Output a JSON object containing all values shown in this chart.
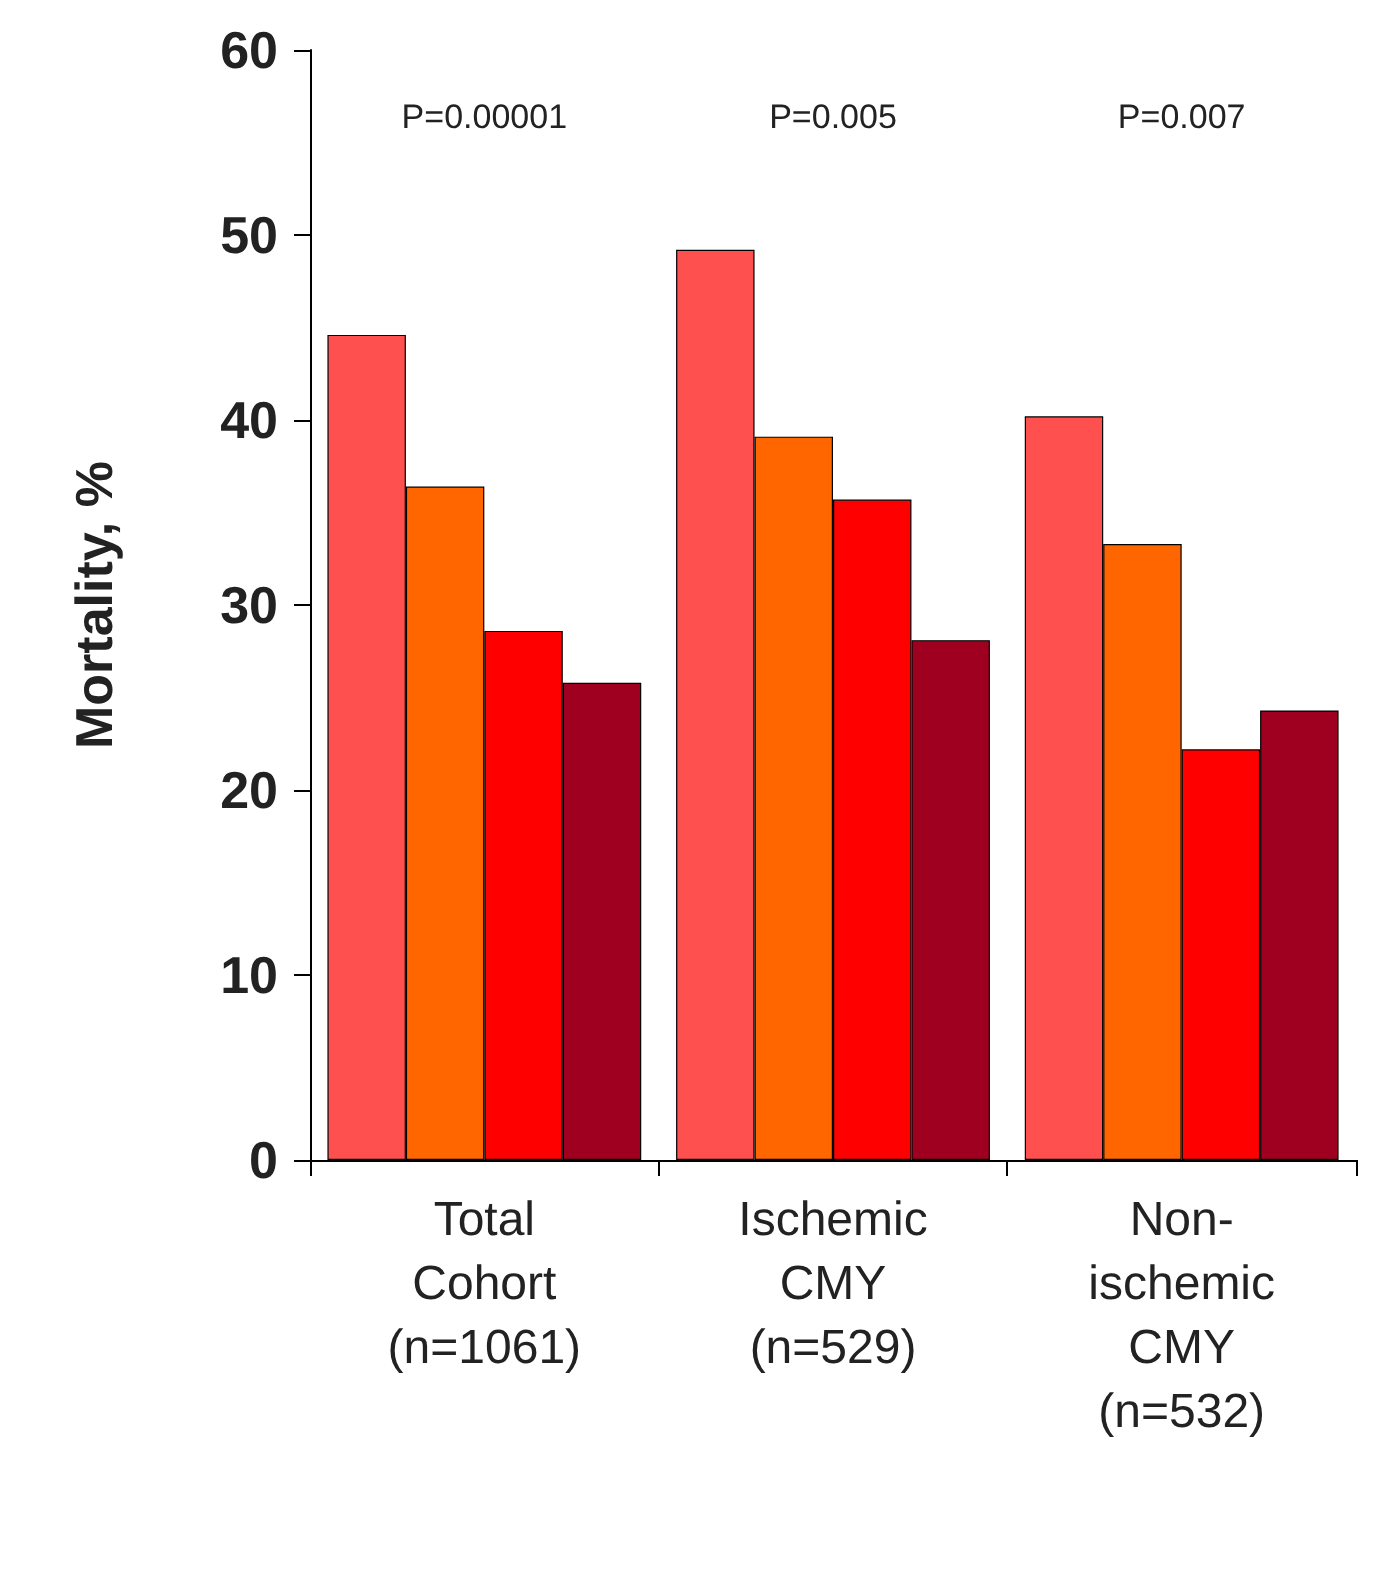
{
  "chart_data": {
    "type": "bar",
    "ylabel": "Mortality, %",
    "categories": [
      "Total\nCohort\n(n=1061)",
      "Ischemic\nCMY\n(n=529)",
      "Non-\nischemic\nCMY\n(n=532)"
    ],
    "series": [
      {
        "color": "#ff5050",
        "values": [
          44.6,
          49.2,
          40.2
        ]
      },
      {
        "color": "#ff6600",
        "values": [
          36.4,
          39.1,
          33.3
        ]
      },
      {
        "color": "#ff0000",
        "values": [
          28.6,
          35.7,
          22.2
        ]
      },
      {
        "color": "#a00020",
        "values": [
          25.8,
          28.1,
          24.3
        ]
      }
    ],
    "annotations": [
      "P=0.00001",
      "P=0.005",
      "P=0.007"
    ],
    "ylim": [
      0,
      60
    ],
    "yticks": [
      0,
      10,
      20,
      30,
      40,
      50,
      60
    ],
    "grid": false
  }
}
